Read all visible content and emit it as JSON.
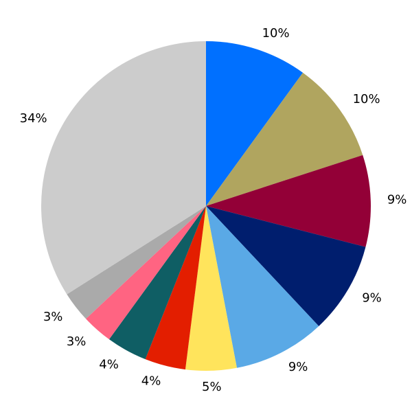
{
  "chart_data": {
    "type": "pie",
    "values": [
      10,
      10,
      9,
      9,
      9,
      5,
      4,
      4,
      3,
      3,
      34
    ],
    "value_labels": [
      "10%",
      "10%",
      "9%",
      "9%",
      "9%",
      "5%",
      "4%",
      "4%",
      "3%",
      "3%",
      "34%"
    ],
    "colors": [
      "#0070ff",
      "#b0a55f",
      "#930037",
      "#001e6e",
      "#5aa9e6",
      "#ffe45c",
      "#e31e00",
      "#0f5e64",
      "#ff6482",
      "#aaaaaa",
      "#cccccc"
    ]
  }
}
